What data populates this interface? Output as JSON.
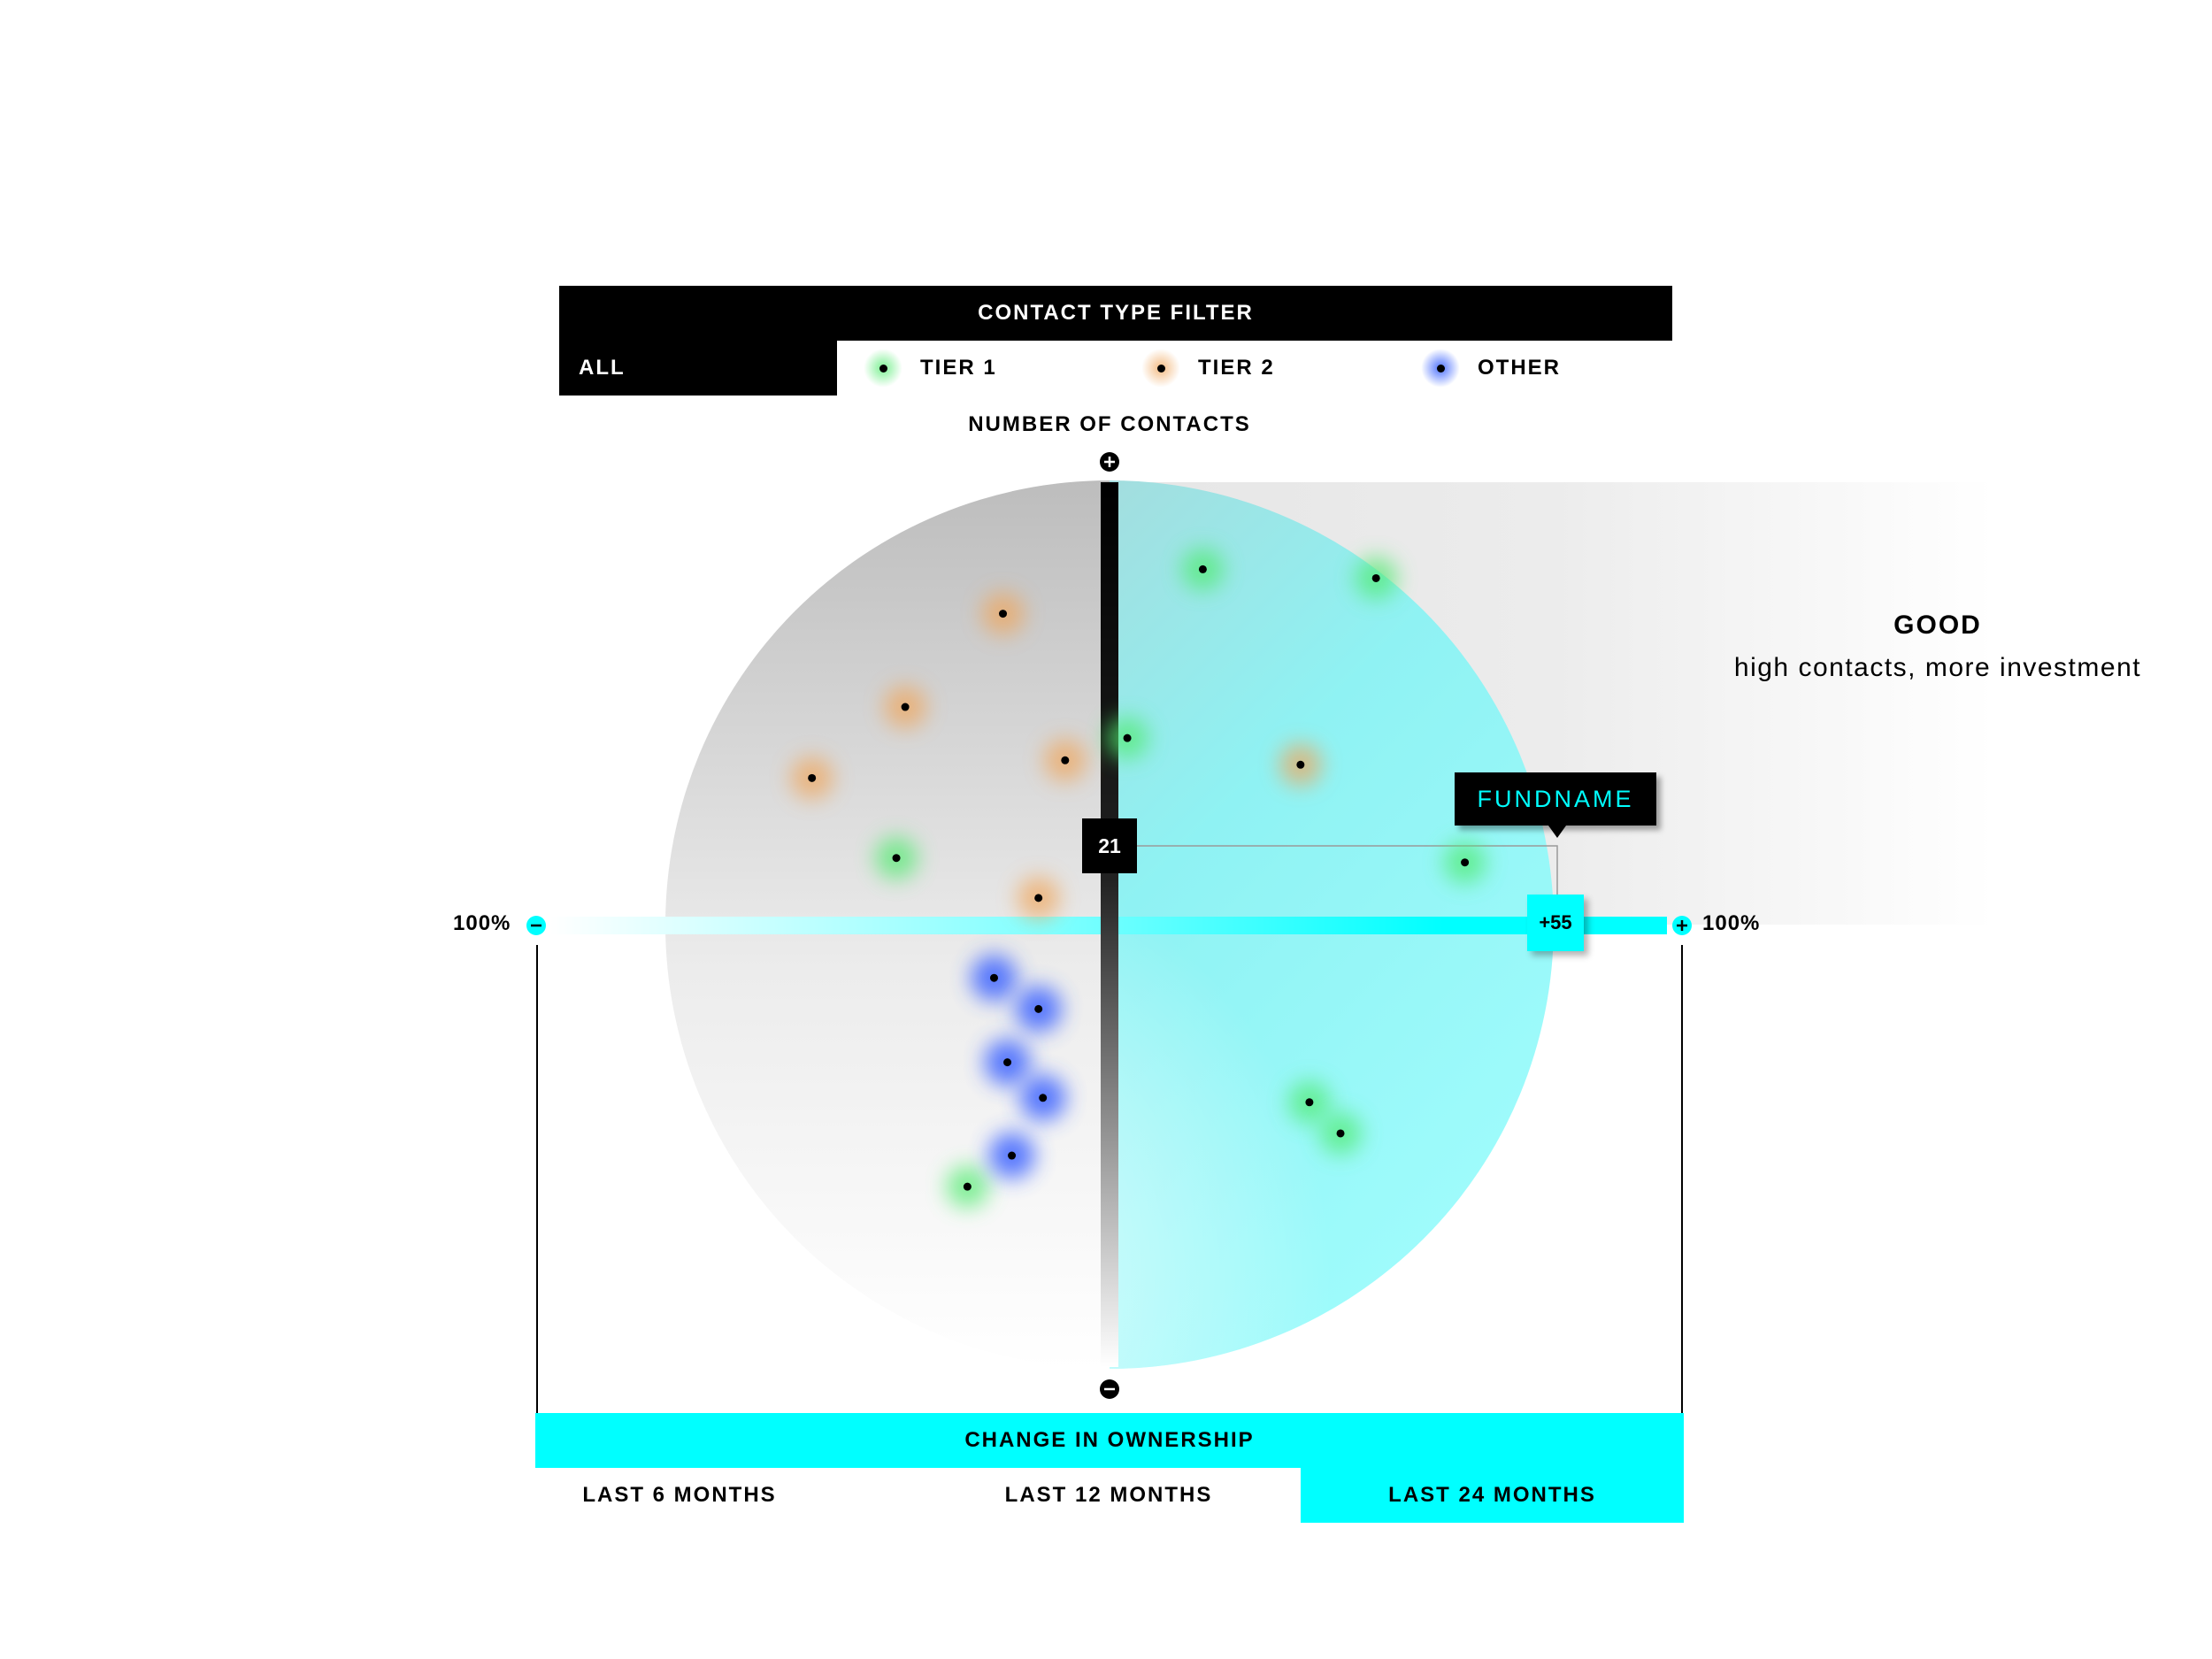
{
  "filter": {
    "title": "CONTACT TYPE FILTER",
    "options": [
      {
        "label": "ALL",
        "selected": true
      },
      {
        "label": "TIER 1",
        "color": "#50eb6e"
      },
      {
        "label": "TIER 2",
        "color": "#f0a55a"
      },
      {
        "label": "OTHER",
        "color": "#3c64ff"
      }
    ]
  },
  "quadrant": {
    "title": "GOOD",
    "description": "high contacts, more investment"
  },
  "tooltip": {
    "fund_name": "FUNDNAME",
    "y_value": "21",
    "x_value": "+55"
  },
  "period": {
    "title": "CHANGE IN OWNERSHIP",
    "options": [
      {
        "label": "LAST 6 MONTHS"
      },
      {
        "label": "LAST 12 MONTHS"
      },
      {
        "label": "LAST 24 MONTHS",
        "selected": true
      }
    ]
  },
  "colors": {
    "accent": "#00ffff",
    "tier1": "#50eb6e",
    "tier2": "#f0a55a",
    "other": "#3c64ff"
  },
  "chart_data": {
    "type": "scatter",
    "ylabel": "NUMBER OF CONTACTS",
    "x_min_label": "100%",
    "x_max_label": "100%",
    "xlim": [
      -100,
      100
    ],
    "ylim": [
      -100,
      100
    ],
    "highlighted_point": {
      "x": 55,
      "y": 21,
      "name": "FUNDNAME"
    },
    "series": [
      {
        "name": "TIER 1",
        "points": [
          {
            "x": 21,
            "y": 80
          },
          {
            "x": 60,
            "y": 78
          },
          {
            "x": 4,
            "y": 42
          },
          {
            "x": -48,
            "y": 15
          },
          {
            "x": 80,
            "y": 14
          },
          {
            "x": 45,
            "y": -40
          },
          {
            "x": 52,
            "y": -47
          },
          {
            "x": -32,
            "y": -59
          }
        ]
      },
      {
        "name": "TIER 2",
        "points": [
          {
            "x": -24,
            "y": 70
          },
          {
            "x": -46,
            "y": 49
          },
          {
            "x": -67,
            "y": 33
          },
          {
            "x": -10,
            "y": 37
          },
          {
            "x": 43,
            "y": 36
          },
          {
            "x": -16,
            "y": 6
          }
        ]
      },
      {
        "name": "OTHER",
        "points": [
          {
            "x": -26,
            "y": -12
          },
          {
            "x": -16,
            "y": -19
          },
          {
            "x": -23,
            "y": -31
          },
          {
            "x": -15,
            "y": -39
          },
          {
            "x": -22,
            "y": -52
          }
        ]
      }
    ]
  }
}
